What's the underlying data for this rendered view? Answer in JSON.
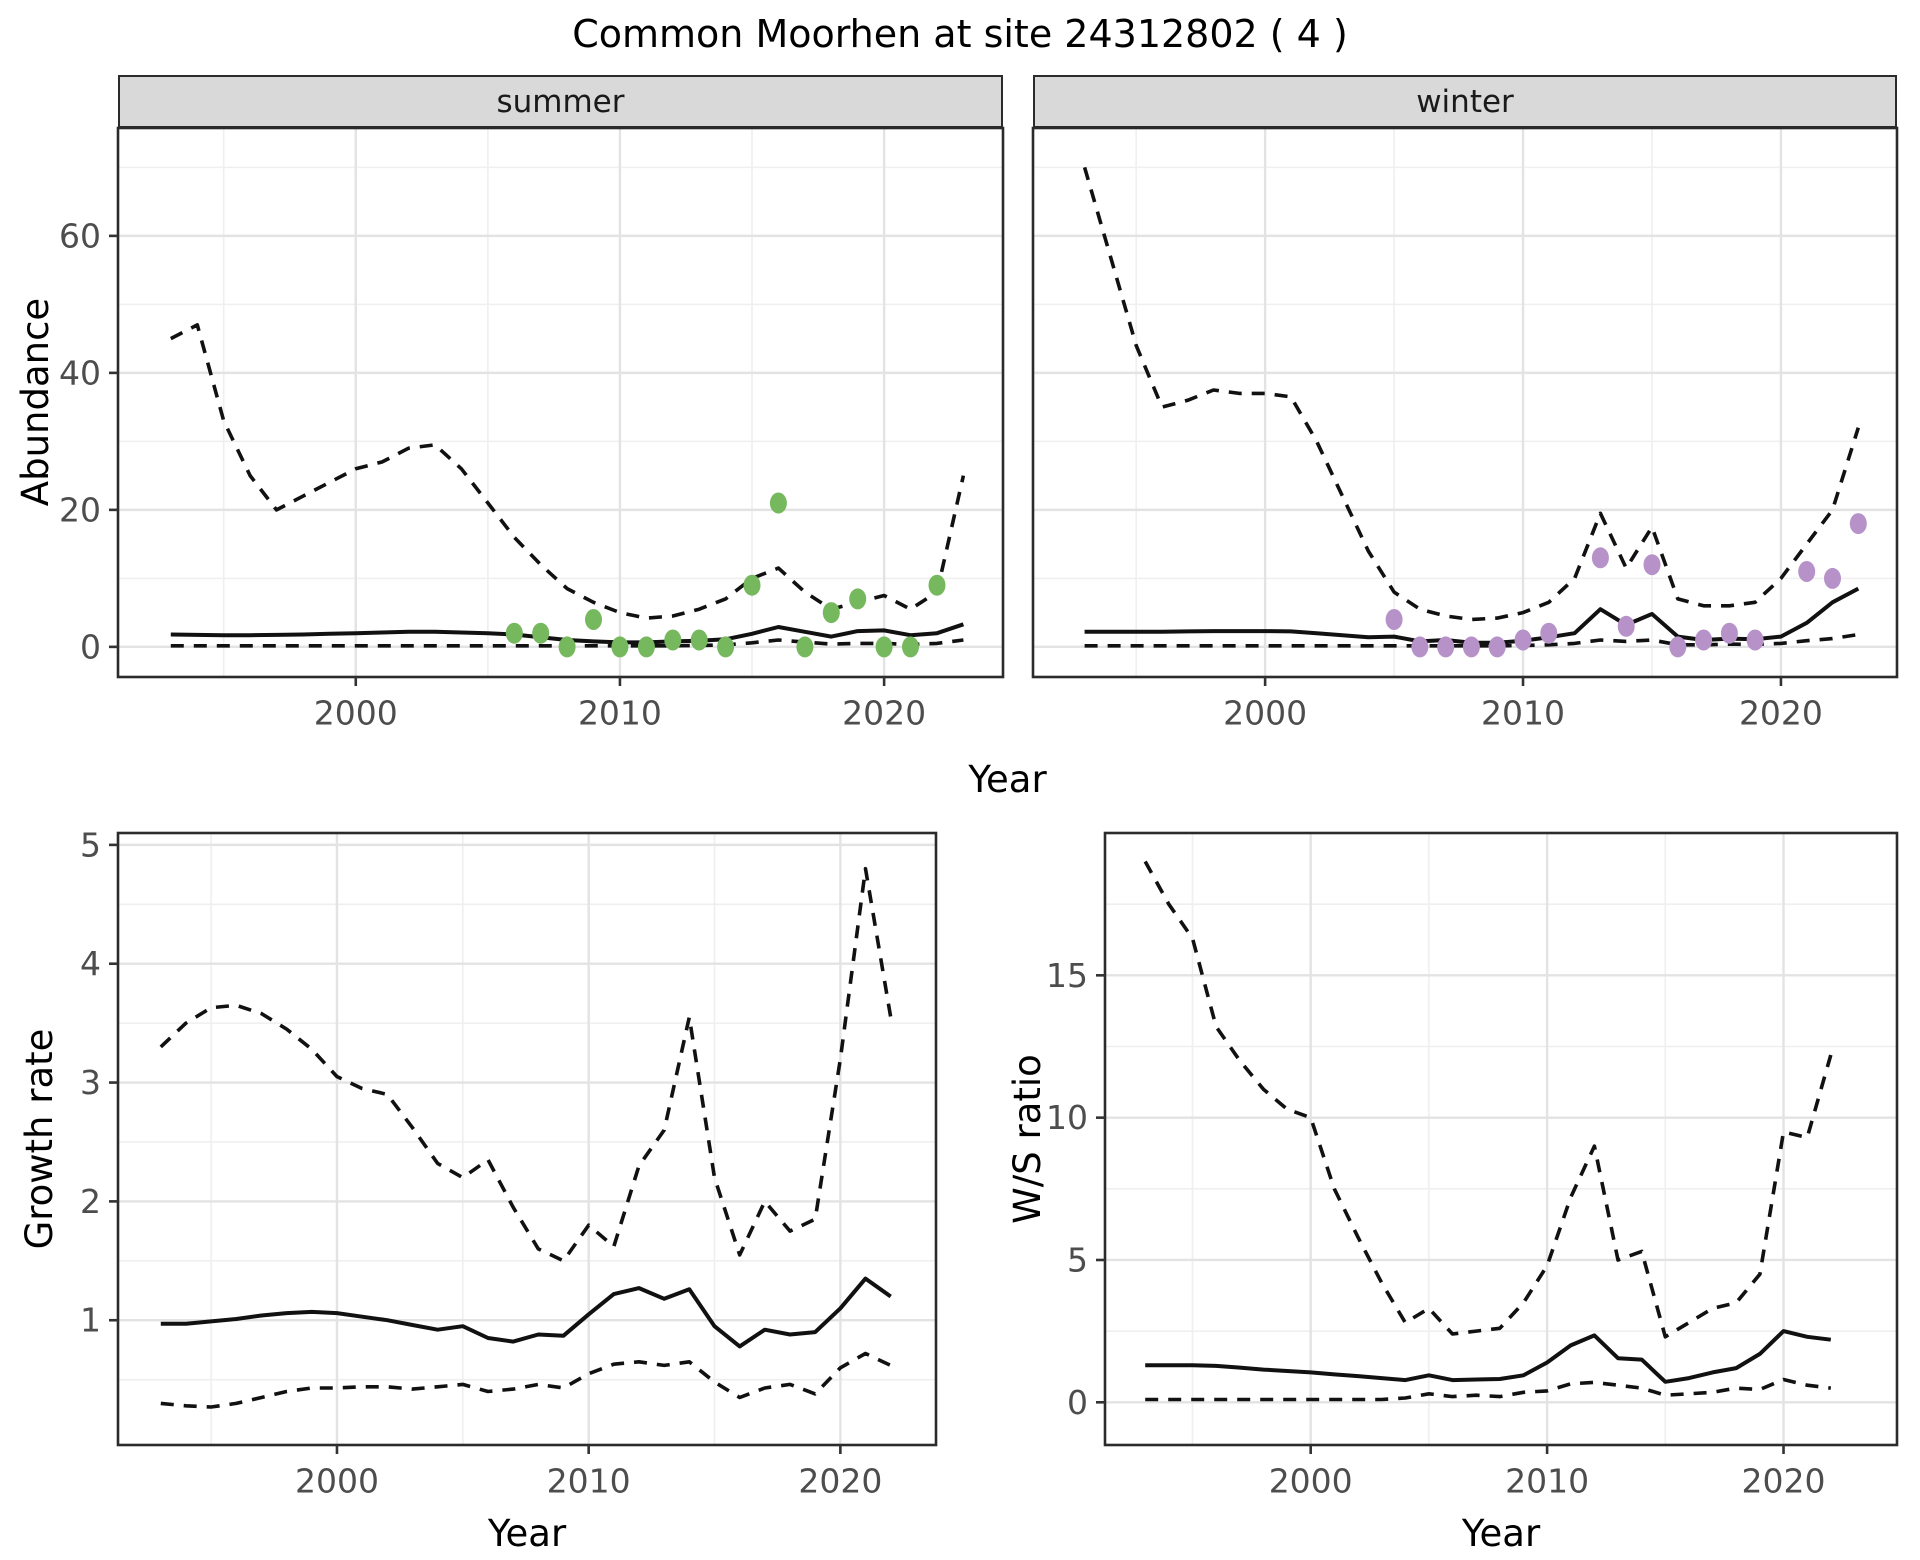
{
  "title": "Common Moorhen at site 24312802 ( 4 )",
  "layout_labels": {
    "x_axis": "Year"
  },
  "panels": {
    "abundance": {
      "ylabel": "Abundance"
    },
    "growth": {
      "ylabel": "Growth rate"
    },
    "ws": {
      "ylabel": "W/S ratio"
    }
  },
  "colors": {
    "summer_points": "#76b85e",
    "winter_points": "#b692c9",
    "line": "#111111",
    "grid_major": "#e3e3e3",
    "grid_minor": "#efefef",
    "strip_bg": "#d9d9d9",
    "panel_border": "#2b2b2b",
    "tick_text": "#4d4d4d",
    "tick_mark": "#333333"
  },
  "chart_data": [
    {
      "id": "abundance-summer",
      "type": "line",
      "facet_label": "summer",
      "xlabel": "Year",
      "ylabel": "Abundance",
      "xlim": [
        1991.0,
        2024.5
      ],
      "ylim": [
        -4.4,
        75.75
      ],
      "xticks": [
        2000,
        2010,
        2020
      ],
      "xticks_minor": [
        1995,
        2005,
        2015
      ],
      "yticks": [
        0,
        20,
        40,
        60
      ],
      "yticks_minor": [
        10,
        30,
        50,
        70
      ],
      "grid": true,
      "x": [
        1993,
        1994,
        1995,
        1996,
        1997,
        1998,
        1999,
        2000,
        2001,
        2002,
        2003,
        2004,
        2005,
        2006,
        2007,
        2008,
        2009,
        2010,
        2011,
        2012,
        2013,
        2014,
        2015,
        2016,
        2017,
        2018,
        2019,
        2020,
        2021,
        2022,
        2023
      ],
      "series": [
        {
          "name": "upper-ci",
          "style": "dashed",
          "values": [
            45,
            47,
            33,
            25,
            20,
            22,
            24,
            26,
            27,
            29,
            29.5,
            26,
            21,
            16,
            12,
            8.5,
            6.5,
            5,
            4.2,
            4.5,
            5.5,
            7,
            10,
            11.5,
            8,
            5.5,
            6.5,
            7.5,
            5.5,
            8,
            25
          ]
        },
        {
          "name": "mean",
          "style": "solid",
          "values": [
            1.8,
            1.75,
            1.7,
            1.7,
            1.75,
            1.8,
            1.9,
            2.0,
            2.1,
            2.2,
            2.2,
            2.1,
            2.0,
            1.8,
            1.4,
            1.0,
            0.8,
            0.65,
            0.65,
            0.8,
            0.9,
            1.1,
            1.9,
            2.9,
            2.2,
            1.5,
            2.3,
            2.4,
            1.7,
            2.0,
            3.3
          ]
        },
        {
          "name": "lower-ci",
          "style": "dashed",
          "values": [
            0.15,
            0.15,
            0.15,
            0.15,
            0.15,
            0.15,
            0.15,
            0.15,
            0.15,
            0.15,
            0.15,
            0.15,
            0.15,
            0.15,
            0.15,
            0.15,
            0.15,
            0.15,
            0.15,
            0.15,
            0.2,
            0.3,
            0.6,
            1.0,
            0.7,
            0.4,
            0.5,
            0.5,
            0.35,
            0.5,
            1.0
          ]
        }
      ],
      "points": {
        "name": "summer-observations",
        "color_key": "summer_points",
        "x": [
          2006,
          2007,
          2008,
          2009,
          2010,
          2011,
          2012,
          2013,
          2014,
          2015,
          2016,
          2017,
          2018,
          2019,
          2020,
          2021,
          2022
        ],
        "y": [
          2,
          2,
          0,
          4,
          0,
          0,
          1,
          1,
          0,
          9,
          21,
          0,
          5,
          7,
          0,
          0,
          9
        ]
      }
    },
    {
      "id": "abundance-winter",
      "type": "line",
      "facet_label": "winter",
      "xlabel": "Year",
      "ylabel": "Abundance",
      "xlim": [
        1991.0,
        2024.5
      ],
      "ylim": [
        -4.4,
        75.75
      ],
      "xticks": [
        2000,
        2010,
        2020
      ],
      "xticks_minor": [
        1995,
        2005,
        2015
      ],
      "yticks": [
        0,
        20,
        40,
        60
      ],
      "yticks_minor": [
        10,
        30,
        50,
        70
      ],
      "grid": true,
      "x": [
        1993,
        1994,
        1995,
        1996,
        1997,
        1998,
        1999,
        2000,
        2001,
        2002,
        2003,
        2004,
        2005,
        2006,
        2007,
        2008,
        2009,
        2010,
        2011,
        2012,
        2013,
        2014,
        2015,
        2016,
        2017,
        2018,
        2019,
        2020,
        2021,
        2022,
        2023
      ],
      "series": [
        {
          "name": "upper-ci",
          "style": "dashed",
          "values": [
            70,
            57,
            44,
            35,
            36,
            37.5,
            37,
            37,
            36.5,
            30,
            22,
            14,
            8,
            5.5,
            4.5,
            4,
            4.2,
            5,
            6.5,
            10,
            19.5,
            11.5,
            17.5,
            7,
            6,
            6,
            6.5,
            10,
            15,
            20,
            32
          ]
        },
        {
          "name": "mean",
          "style": "solid",
          "values": [
            2.2,
            2.2,
            2.2,
            2.2,
            2.25,
            2.3,
            2.3,
            2.3,
            2.25,
            2.0,
            1.7,
            1.4,
            1.5,
            0.8,
            1.0,
            0.6,
            0.6,
            0.9,
            1.4,
            2.0,
            5.5,
            3.2,
            4.8,
            1.5,
            1.0,
            1.2,
            1.1,
            1.5,
            3.5,
            6.5,
            8.5
          ]
        },
        {
          "name": "lower-ci",
          "style": "dashed",
          "values": [
            0.15,
            0.15,
            0.15,
            0.15,
            0.15,
            0.15,
            0.15,
            0.15,
            0.15,
            0.15,
            0.15,
            0.15,
            0.15,
            0.15,
            0.15,
            0.15,
            0.15,
            0.2,
            0.3,
            0.5,
            1.0,
            0.8,
            1.0,
            0.3,
            0.3,
            0.4,
            0.35,
            0.5,
            0.9,
            1.2,
            1.8
          ]
        }
      ],
      "points": {
        "name": "winter-observations",
        "color_key": "winter_points",
        "x": [
          2005,
          2006,
          2007,
          2008,
          2009,
          2010,
          2011,
          2013,
          2014,
          2015,
          2016,
          2017,
          2018,
          2019,
          2021,
          2022,
          2023
        ],
        "y": [
          4,
          0,
          0,
          0,
          0,
          1,
          2,
          13,
          3,
          12,
          0,
          1,
          2,
          1,
          11,
          10,
          18
        ]
      }
    },
    {
      "id": "growth-rate",
      "type": "line",
      "facet_label": "",
      "xlabel": "Year",
      "ylabel": "Growth rate",
      "xlim": [
        1991.3,
        2023.8
      ],
      "ylim": [
        -0.05,
        5.1
      ],
      "xticks": [
        2000,
        2010,
        2020
      ],
      "xticks_minor": [
        1995,
        2005,
        2015
      ],
      "yticks": [
        1,
        2,
        3,
        4,
        5
      ],
      "yticks_minor": [
        0.5,
        1.5,
        2.5,
        3.5,
        4.5
      ],
      "grid": true,
      "x": [
        1993,
        1994,
        1995,
        1996,
        1997,
        1998,
        1999,
        2000,
        2001,
        2002,
        2003,
        2004,
        2005,
        2006,
        2007,
        2008,
        2009,
        2010,
        2011,
        2012,
        2013,
        2014,
        2015,
        2016,
        2017,
        2018,
        2019,
        2020,
        2021,
        2022
      ],
      "series": [
        {
          "name": "upper-ci",
          "style": "dashed",
          "values": [
            3.3,
            3.5,
            3.63,
            3.65,
            3.58,
            3.45,
            3.28,
            3.05,
            2.95,
            2.9,
            2.62,
            2.32,
            2.2,
            2.35,
            1.95,
            1.6,
            1.5,
            1.8,
            1.62,
            2.3,
            2.6,
            3.55,
            2.2,
            1.55,
            2.0,
            1.75,
            1.85,
            3.2,
            4.8,
            3.55
          ]
        },
        {
          "name": "mean",
          "style": "solid",
          "values": [
            0.97,
            0.97,
            0.99,
            1.01,
            1.04,
            1.06,
            1.07,
            1.06,
            1.03,
            1.0,
            0.96,
            0.92,
            0.95,
            0.85,
            0.82,
            0.88,
            0.87,
            1.05,
            1.22,
            1.27,
            1.18,
            1.26,
            0.95,
            0.78,
            0.92,
            0.88,
            0.9,
            1.1,
            1.35,
            1.2
          ]
        },
        {
          "name": "lower-ci",
          "style": "dashed",
          "values": [
            0.3,
            0.28,
            0.27,
            0.3,
            0.35,
            0.4,
            0.43,
            0.43,
            0.44,
            0.44,
            0.42,
            0.44,
            0.46,
            0.4,
            0.42,
            0.46,
            0.43,
            0.55,
            0.63,
            0.65,
            0.62,
            0.65,
            0.48,
            0.35,
            0.43,
            0.46,
            0.38,
            0.6,
            0.72,
            0.62
          ]
        }
      ],
      "points": null
    },
    {
      "id": "ws-ratio",
      "type": "line",
      "facet_label": "",
      "xlabel": "Year",
      "ylabel": "W/S ratio",
      "xlim": [
        1991.3,
        2024.8
      ],
      "ylim": [
        -1.5,
        20
      ],
      "xticks": [
        2000,
        2010,
        2020
      ],
      "xticks_minor": [
        1995,
        2005,
        2015
      ],
      "yticks": [
        0,
        5,
        10,
        15
      ],
      "yticks_minor": [
        2.5,
        7.5,
        12.5,
        17.5
      ],
      "grid": true,
      "x": [
        1993,
        1994,
        1995,
        1996,
        1997,
        1998,
        1999,
        2000,
        2001,
        2002,
        2003,
        2004,
        2005,
        2006,
        2007,
        2008,
        2009,
        2010,
        2011,
        2012,
        2013,
        2014,
        2015,
        2016,
        2017,
        2018,
        2019,
        2020,
        2021,
        2022
      ],
      "series": [
        {
          "name": "upper-ci",
          "style": "dashed",
          "values": [
            19,
            17.5,
            16.3,
            13.2,
            12,
            11,
            10.3,
            10,
            7.5,
            5.8,
            4.2,
            2.8,
            3.3,
            2.4,
            2.5,
            2.6,
            3.5,
            4.8,
            7.2,
            9.0,
            5.0,
            5.3,
            2.3,
            2.8,
            3.3,
            3.5,
            4.5,
            9.5,
            9.3,
            12.2
          ]
        },
        {
          "name": "mean",
          "style": "solid",
          "values": [
            1.3,
            1.3,
            1.3,
            1.28,
            1.22,
            1.15,
            1.1,
            1.05,
            0.98,
            0.92,
            0.85,
            0.78,
            0.95,
            0.78,
            0.8,
            0.82,
            0.95,
            1.4,
            2.0,
            2.35,
            1.55,
            1.5,
            0.72,
            0.85,
            1.05,
            1.2,
            1.7,
            2.5,
            2.3,
            2.2
          ]
        },
        {
          "name": "lower-ci",
          "style": "dashed",
          "values": [
            0.1,
            0.1,
            0.1,
            0.1,
            0.1,
            0.1,
            0.1,
            0.1,
            0.1,
            0.1,
            0.1,
            0.15,
            0.3,
            0.2,
            0.25,
            0.2,
            0.35,
            0.4,
            0.65,
            0.7,
            0.6,
            0.5,
            0.25,
            0.3,
            0.35,
            0.5,
            0.45,
            0.8,
            0.6,
            0.5
          ]
        }
      ],
      "points": null
    }
  ]
}
